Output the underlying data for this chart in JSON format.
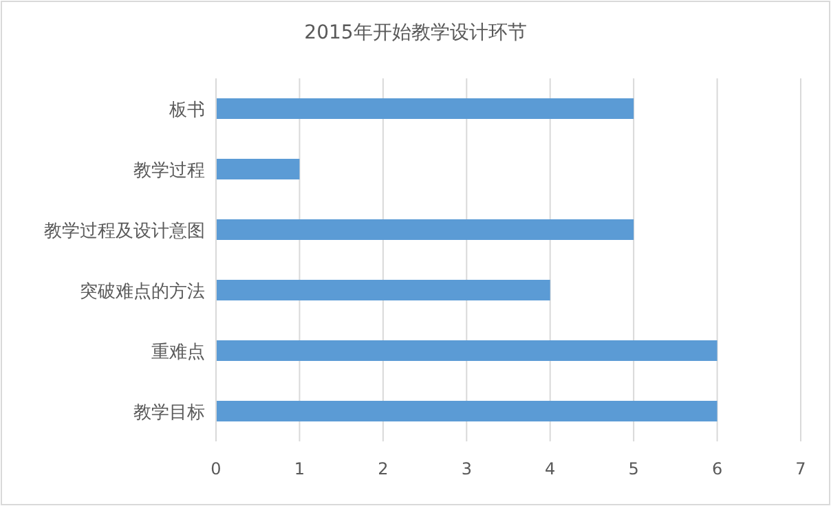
{
  "chart_data": {
    "type": "bar",
    "orientation": "horizontal",
    "title": "2015年开始教学设计环节",
    "categories": [
      "板书",
      "教学过程",
      "教学过程及设计意图",
      "突破难点的方法",
      "重难点",
      "教学目标"
    ],
    "values": [
      5,
      1,
      5,
      4,
      6,
      6
    ],
    "color": "#5b9bd5",
    "xlim": [
      0,
      7
    ],
    "xticks": [
      0,
      1,
      2,
      3,
      4,
      5,
      6,
      7
    ],
    "grid": "x"
  }
}
